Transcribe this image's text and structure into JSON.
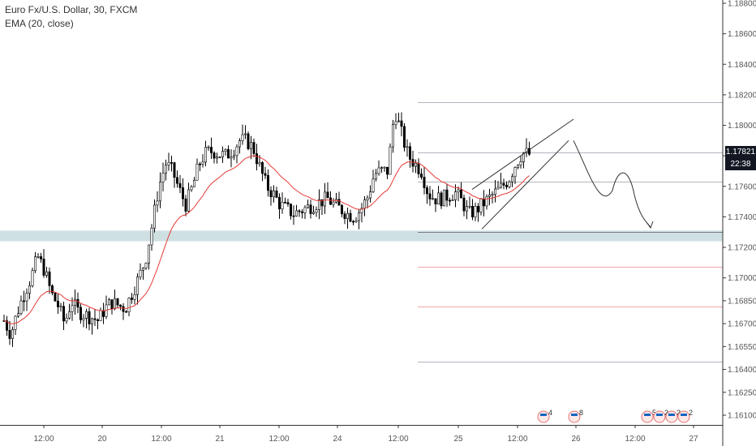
{
  "header": {
    "symbol_line": "Euro Fx/U.S. Dollar, 30, FXCM",
    "indicator_line": "EMA (20, close)"
  },
  "price_tag": {
    "price": "1.17821",
    "countdown": "22:38"
  },
  "chart_data": {
    "type": "candlestick",
    "title": "",
    "xlabel": "",
    "ylabel": "",
    "ylim": [
      1.1605,
      1.189
    ],
    "y_ticks": [
      "1.18800",
      "1.18600",
      "1.18400",
      "1.18200",
      "1.18000",
      "1.17800",
      "1.17600",
      "1.17400",
      "1.17200",
      "1.17000",
      "1.16850",
      "1.16700",
      "1.16550",
      "1.16400",
      "1.16250",
      "1.16100"
    ],
    "x_ticks": [
      "12:00",
      "20",
      "12:00",
      "21",
      "12:00",
      "24",
      "12:00",
      "25",
      "12:00",
      "26",
      "12:00",
      "27"
    ],
    "grid": false,
    "support_zone": [
      1.1724,
      1.1731
    ],
    "horizontal_levels": [
      {
        "value": 1.1815,
        "color": "#b2b5be"
      },
      {
        "value": 1.1782,
        "color": "#b2b5be"
      },
      {
        "value": 1.1763,
        "color": "#b2b5be"
      },
      {
        "value": 1.173,
        "color": "#787b86"
      },
      {
        "value": 1.1707,
        "color": "#f4a6a6"
      },
      {
        "value": 1.1681,
        "color": "#f4a6a6"
      },
      {
        "value": 1.1645,
        "color": "#b2b5be"
      }
    ],
    "candle_color": "#000000",
    "ema_color": "#e53935",
    "zone_color": "#cfe0e3",
    "event_markers": [
      "4",
      "8",
      "5",
      "2",
      "2",
      "2"
    ],
    "close_path": [
      1.1672,
      1.1663,
      1.1678,
      1.169,
      1.17,
      1.1714,
      1.1705,
      1.169,
      1.1682,
      1.167,
      1.1685,
      1.1678,
      1.1676,
      1.1674,
      1.1672,
      1.168,
      1.1684,
      1.1682,
      1.168,
      1.169,
      1.17,
      1.1712,
      1.1735,
      1.176,
      1.1775,
      1.177,
      1.1758,
      1.1748,
      1.176,
      1.1775,
      1.1782,
      1.1783,
      1.1781,
      1.178,
      1.1784,
      1.179,
      1.179,
      1.1785,
      1.1772,
      1.176,
      1.1755,
      1.1748,
      1.1745,
      1.1742,
      1.1744,
      1.1746,
      1.1748,
      1.175,
      1.1752,
      1.1748,
      1.1745,
      1.1742,
      1.174,
      1.1745,
      1.1753,
      1.1768,
      1.177,
      1.177,
      1.181,
      1.1795,
      1.178,
      1.1775,
      1.177,
      1.1755,
      1.1752,
      1.1752,
      1.1754,
      1.1756,
      1.175,
      1.1742,
      1.1744,
      1.1748,
      1.1752,
      1.1756,
      1.176,
      1.1765,
      1.1775,
      1.1782,
      1.1781
    ]
  }
}
